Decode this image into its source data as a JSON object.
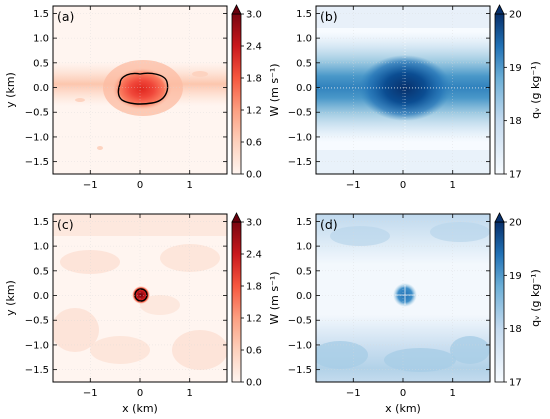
{
  "chart_data": [
    {
      "type": "heatmap",
      "panel": "a",
      "panel_label": "(a)",
      "xlabel": "",
      "ylabel": "y (km)",
      "xlim": [
        -1.75,
        1.75
      ],
      "ylim": [
        -1.75,
        1.65
      ],
      "xticks": [
        "−1",
        "0",
        "1"
      ],
      "yticks": [
        "1.5",
        "1.0",
        "0.5",
        "0.0",
        "−0.5",
        "−1.0",
        "−1.5"
      ],
      "colorbar": {
        "label": "W (m s⁻¹)",
        "colormap": "Reds",
        "range": [
          0,
          3.0
        ],
        "ticks": [
          "3.0",
          "2.4",
          "1.8",
          "1.2",
          "0.6",
          "0.0"
        ],
        "extend": "max",
        "colors": [
          "#fff5f0",
          "#fdd0bc",
          "#fc9f81",
          "#f6573f",
          "#c9181d",
          "#67000d"
        ]
      },
      "features": {
        "core": {
          "x": 0.0,
          "y": 0.0,
          "rx": 0.4,
          "ry": 0.3,
          "peak": 3.0
        },
        "band": {
          "y": 0.0,
          "half_width": 0.2,
          "value": 0.35
        },
        "contour_level": 1.0
      }
    },
    {
      "type": "heatmap",
      "panel": "b",
      "panel_label": "(b)",
      "xlabel": "",
      "ylabel": "",
      "xlim": [
        -1.75,
        1.75
      ],
      "ylim": [
        -1.75,
        1.65
      ],
      "xticks": [
        "−1",
        "0",
        "1"
      ],
      "yticks": [
        "1.5",
        "1.0",
        "0.5",
        "0.0",
        "−0.5",
        "−1.0",
        "−1.5"
      ],
      "colorbar": {
        "label": "qᵥ (g kg⁻¹)",
        "colormap": "Blues",
        "range": [
          17,
          20
        ],
        "ticks": [
          "20",
          "19",
          "18",
          "17"
        ],
        "extend": "max",
        "colors": [
          "#f7fbff",
          "#c6dbef",
          "#6baed6",
          "#2171b5",
          "#08306b"
        ]
      },
      "features": {
        "moist_band": {
          "y": 0.0,
          "half_width": 0.65,
          "value": 18.8
        },
        "core": {
          "x": 0.0,
          "y": 0.0,
          "rx": 0.5,
          "ry": 0.4,
          "peak": 20.0
        }
      }
    },
    {
      "type": "heatmap",
      "panel": "c",
      "panel_label": "(c)",
      "xlabel": "x (km)",
      "ylabel": "y (km)",
      "xlim": [
        -1.75,
        1.75
      ],
      "ylim": [
        -1.75,
        1.65
      ],
      "xticks": [
        "−1",
        "0",
        "1"
      ],
      "yticks": [
        "1.5",
        "1.0",
        "0.5",
        "0.0",
        "−0.5",
        "−1.0",
        "−1.5"
      ],
      "colorbar": {
        "label": "W (m s⁻¹)",
        "colormap": "Reds",
        "range": [
          0,
          3.0
        ],
        "ticks": [
          "3.0",
          "2.4",
          "1.8",
          "1.2",
          "0.6",
          "0.0"
        ],
        "extend": "max",
        "colors": [
          "#fff5f0",
          "#fdd0bc",
          "#fc9f81",
          "#f6573f",
          "#c9181d",
          "#67000d"
        ]
      },
      "features": {
        "core": {
          "x": 0.0,
          "y": 0.0,
          "rx": 0.09,
          "ry": 0.09,
          "peak": 3.0
        },
        "background": 0.3,
        "contour_level": 1.0
      }
    },
    {
      "type": "heatmap",
      "panel": "d",
      "panel_label": "(d)",
      "xlabel": "x (km)",
      "ylabel": "",
      "xlim": [
        -1.75,
        1.75
      ],
      "ylim": [
        -1.75,
        1.65
      ],
      "xticks": [
        "−1",
        "0",
        "1"
      ],
      "yticks": [
        "1.5",
        "1.0",
        "0.5",
        "0.0",
        "−0.5",
        "−1.0",
        "−1.5"
      ],
      "colorbar": {
        "label": "qᵥ (g kg⁻¹)",
        "colormap": "Blues",
        "range": [
          17,
          20
        ],
        "ticks": [
          "20",
          "19",
          "18",
          "17"
        ],
        "extend": "max",
        "colors": [
          "#f7fbff",
          "#c6dbef",
          "#6baed6",
          "#2171b5",
          "#08306b"
        ]
      },
      "features": {
        "upper_band": {
          "y": 1.4,
          "value": 17.9
        },
        "lower_band": {
          "y": -1.3,
          "value": 18.0
        },
        "core": {
          "x": 0.0,
          "y": 0.0,
          "rx": 0.12,
          "ry": 0.12,
          "peak": 19.0
        }
      }
    }
  ]
}
